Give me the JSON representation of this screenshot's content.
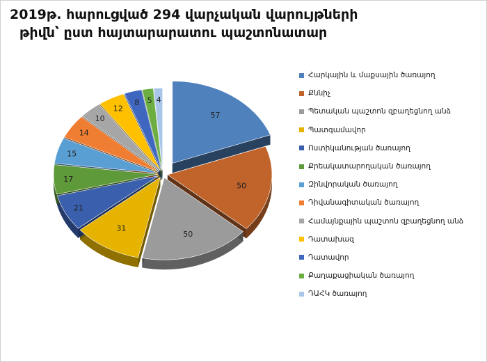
{
  "chart_data": {
    "type": "pie",
    "title_line1": "2019թ. հարուցված 294 վարչական վարույթների",
    "title_line2": "թիվն՝ ըստ հայտարարատու պաշտոնատար",
    "legend_position": "right",
    "slices": [
      {
        "label": "Հարկային և մաքսային ծառայող",
        "value": 57,
        "color": "#4f81bd",
        "exploded": true
      },
      {
        "label": "Քննիչ",
        "value": 50,
        "color": "#c0642b",
        "exploded": false
      },
      {
        "label": "Պետական պաշտոն զբաղեցնող անձ",
        "value": 50,
        "color": "#9b9b9b",
        "exploded": false
      },
      {
        "label": "Պատգամավոր",
        "value": 31,
        "color": "#e6b400",
        "exploded": false
      },
      {
        "label": "Ոստիկանության ծառայող",
        "value": 21,
        "color": "#3a5fad",
        "exploded": false
      },
      {
        "label": "Քրեակատարողական ծառայող",
        "value": 17,
        "color": "#5f9a3a",
        "exploded": false
      },
      {
        "label": "Զինվորական ծառայող",
        "value": 15,
        "color": "#5a9fd4",
        "exploded": false
      },
      {
        "label": "Դիվանագիտական ծառայող",
        "value": 14,
        "color": "#ef7e32",
        "exploded": false
      },
      {
        "label": "Համայնքային պաշտոն զբաղեցնող անձ",
        "value": 10,
        "color": "#a6a6a6",
        "exploded": false
      },
      {
        "label": "Դատախազ",
        "value": 12,
        "color": "#ffc000",
        "exploded": false
      },
      {
        "label": "Դատավոր",
        "value": 8,
        "color": "#3f67c0",
        "exploded": false
      },
      {
        "label": "Քաղաքացիական ծառայող",
        "value": 5,
        "color": "#6cae42",
        "exploded": false
      },
      {
        "label": "ԴԱՀԿ ծառայող",
        "value": 4,
        "color": "#a9c6e8",
        "exploded": false
      }
    ]
  }
}
